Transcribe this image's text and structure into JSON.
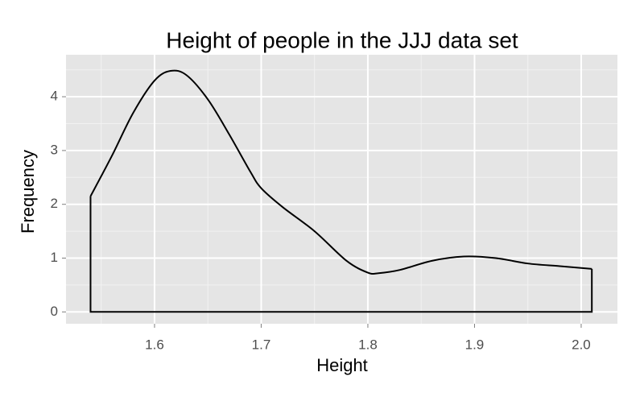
{
  "chart_data": {
    "type": "density",
    "title": "Height of people in the JJJ data set",
    "x_label": "Height",
    "y_label": "Frequency",
    "x": [
      1.54,
      1.56,
      1.58,
      1.6,
      1.615,
      1.63,
      1.65,
      1.67,
      1.69,
      1.7,
      1.72,
      1.75,
      1.78,
      1.8,
      1.81,
      1.83,
      1.86,
      1.89,
      1.92,
      1.95,
      1.98,
      2.01
    ],
    "values": [
      2.15,
      2.9,
      3.7,
      4.3,
      4.48,
      4.4,
      3.95,
      3.3,
      2.6,
      2.3,
      1.95,
      1.5,
      0.95,
      0.73,
      0.72,
      0.78,
      0.95,
      1.03,
      1.0,
      0.9,
      0.85,
      0.8
    ],
    "color": "#000000",
    "xlim": [
      1.517,
      2.034
    ],
    "ylim": [
      -0.22,
      4.78
    ],
    "xticks": [
      1.6,
      1.7,
      1.8,
      1.9,
      {
        "value": 2,
        "label": "2.0"
      }
    ],
    "yticks": [
      0,
      1,
      2,
      3,
      4
    ],
    "grid": true,
    "minor_grid": true
  }
}
